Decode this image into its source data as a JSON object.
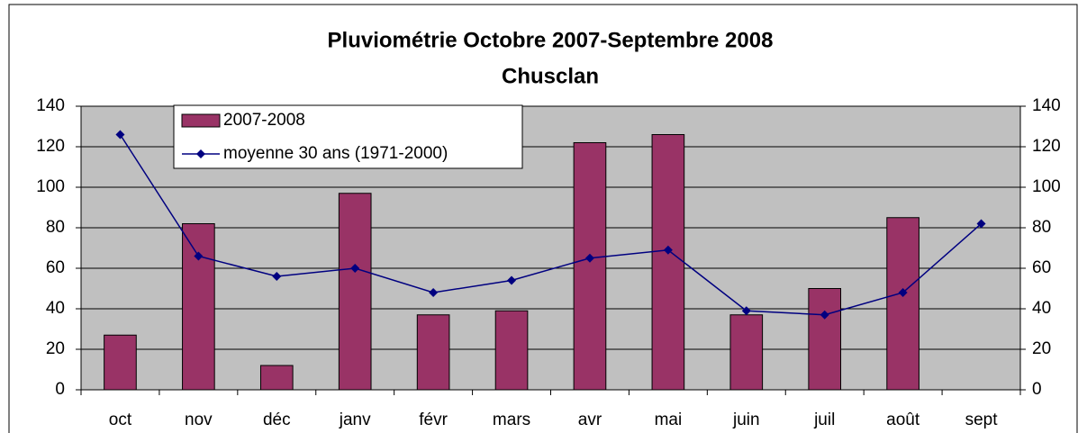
{
  "chart_data": {
    "type": "bar_line",
    "title": "Pluviométrie Octobre 2007-Septembre 2008",
    "subtitle": "Chusclan",
    "categories": [
      "oct",
      "nov",
      "déc",
      "janv",
      "févr",
      "mars",
      "avr",
      "mai",
      "juin",
      "juil",
      "août",
      "sept"
    ],
    "series": [
      {
        "name": "2007-2008",
        "type": "bar",
        "color": "#993366",
        "values": [
          27,
          82,
          12,
          97,
          37,
          39,
          122,
          126,
          37,
          50,
          85,
          null
        ]
      },
      {
        "name": "moyenne 30 ans (1971-2000)",
        "type": "line",
        "axis": "y2",
        "color": "#000080",
        "values": [
          126,
          66,
          56,
          60,
          48,
          54,
          65,
          69,
          39,
          37,
          48,
          82
        ]
      }
    ],
    "ylim": [
      0,
      140
    ],
    "yticks": [
      0,
      20,
      40,
      60,
      80,
      100,
      120,
      140
    ],
    "y2lim": [
      0,
      140
    ],
    "y2ticks": [
      0,
      20,
      40,
      60,
      80,
      100,
      120,
      140
    ],
    "grid": true,
    "legend": "top-left"
  }
}
